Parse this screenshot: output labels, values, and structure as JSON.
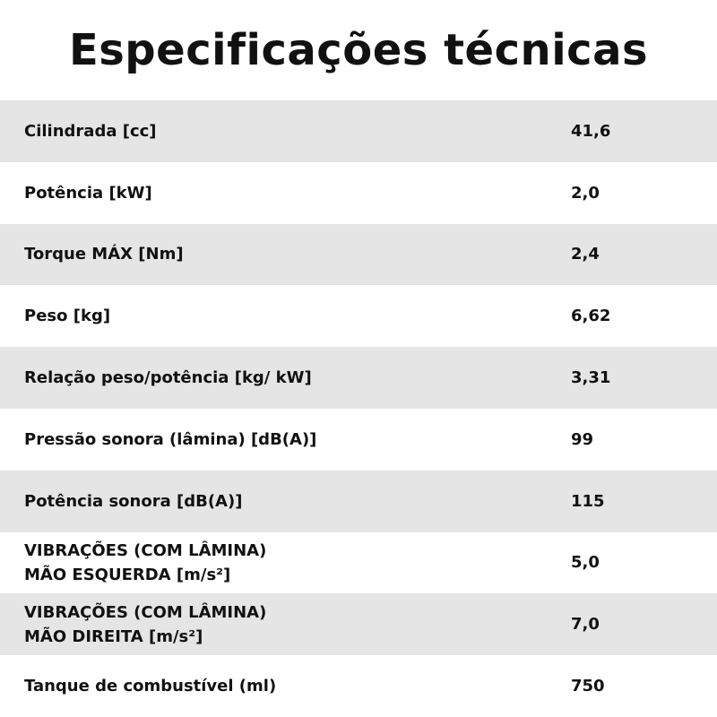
{
  "header": {
    "title": "Especificações técnicas"
  },
  "table": {
    "rows": [
      [
        "Cilindrada [cc]",
        "41,6"
      ],
      [
        "Potência [kW]",
        "2,0"
      ],
      [
        "Torque MÁX [Nm]",
        "2,4"
      ],
      [
        "Peso [kg]",
        "6,62"
      ],
      [
        "Relação peso/potência [kg/ kW]",
        "3,31"
      ],
      [
        "Pressão sonora (lâmina) [dB(A)]",
        "99"
      ],
      [
        "Potência sonora [dB(A)]",
        "115"
      ],
      [
        "VIBRAÇÕES (COM LÂMINA)\nMÃO ESQUERDA [m/s²]",
        "5,0"
      ],
      [
        "VIBRAÇÕES (COM LÂMINA)\nMÃO DIREITA [m/s²]",
        "7,0"
      ],
      [
        "Tanque de combustível (ml)",
        "750"
      ]
    ]
  }
}
